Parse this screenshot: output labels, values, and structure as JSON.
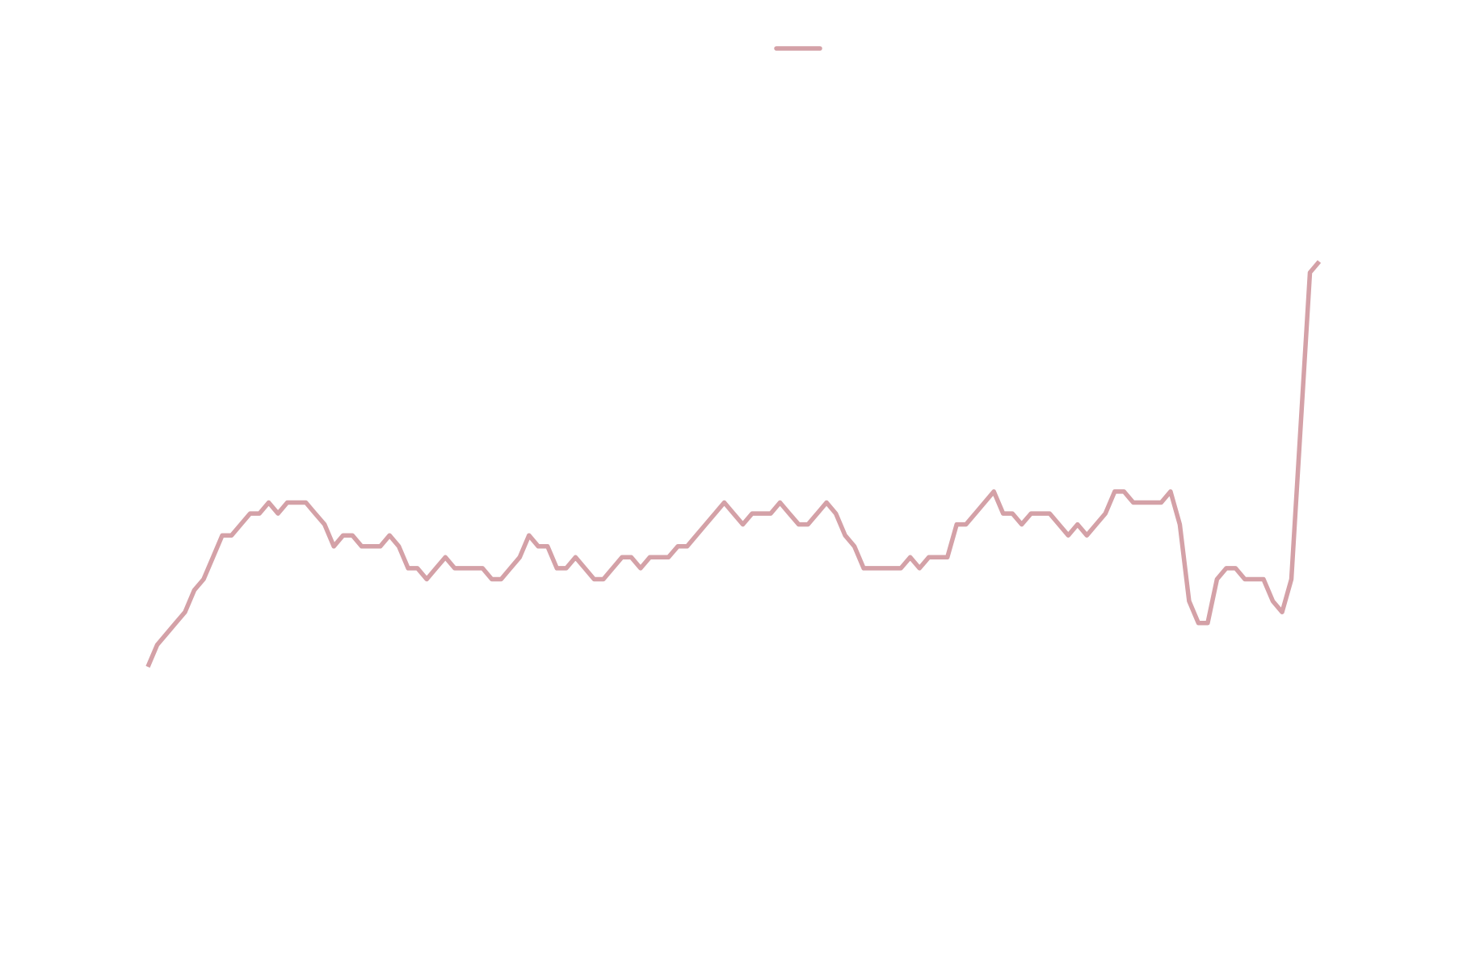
{
  "chart_data": {
    "type": "line",
    "legend": true,
    "series": [
      {
        "color": "#d4a1a7",
        "values": [
          0,
          2,
          3,
          4,
          5,
          7,
          8,
          10,
          12,
          12,
          13,
          14,
          14,
          15,
          14,
          15,
          15,
          15,
          14,
          13,
          11,
          12,
          12,
          11,
          11,
          11,
          12,
          11,
          9,
          9,
          8,
          9,
          10,
          9,
          9,
          9,
          9,
          8,
          8,
          9,
          10,
          12,
          11,
          11,
          9,
          9,
          10,
          9,
          8,
          8,
          9,
          10,
          10,
          9,
          10,
          10,
          10,
          11,
          11,
          12,
          13,
          14,
          15,
          14,
          13,
          14,
          14,
          14,
          15,
          14,
          13,
          13,
          14,
          15,
          14,
          12,
          11,
          9,
          9,
          9,
          9,
          9,
          10,
          9,
          10,
          10,
          10,
          13,
          13,
          14,
          15,
          16,
          14,
          14,
          13,
          14,
          14,
          14,
          13,
          12,
          13,
          12,
          13,
          14,
          16,
          16,
          15,
          15,
          15,
          15,
          16,
          13,
          6,
          4,
          4,
          8,
          9,
          9,
          8,
          8,
          8,
          6,
          5,
          8,
          22,
          36,
          37
        ]
      }
    ]
  }
}
